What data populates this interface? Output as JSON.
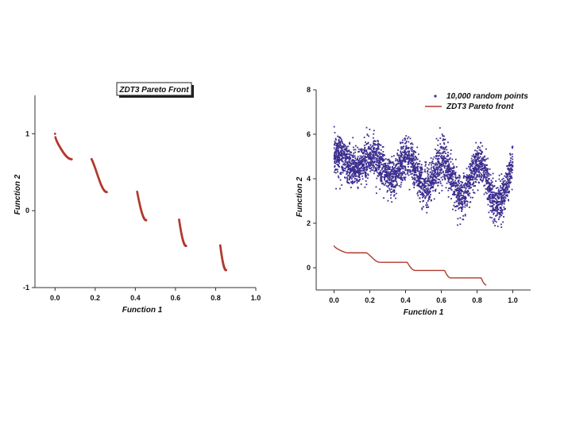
{
  "chart_data": [
    {
      "type": "scatter",
      "title": "ZDT3 Pareto Front",
      "xlabel": "Function 1",
      "ylabel": "Function 2",
      "xlim": [
        -0.1,
        1.0
      ],
      "ylim": [
        -1.0,
        1.5
      ],
      "xticks": [
        "0.0",
        "0.2",
        "0.4",
        "0.6",
        "0.8",
        "1.0"
      ],
      "yticks": [
        "-1",
        "0",
        "1"
      ],
      "point_color": "#b03a2e",
      "segments": [
        {
          "xmin": 0.0,
          "xmax": 0.083
        },
        {
          "xmin": 0.182,
          "xmax": 0.258
        },
        {
          "xmin": 0.409,
          "xmax": 0.454
        },
        {
          "xmin": 0.618,
          "xmax": 0.653
        },
        {
          "xmin": 0.823,
          "xmax": 0.852
        }
      ]
    },
    {
      "type": "scatter",
      "xlabel": "Function 1",
      "ylabel": "Function 2",
      "xlim": [
        -0.1,
        1.1
      ],
      "ylim": [
        -1.0,
        8.0
      ],
      "xticks": [
        "0.0",
        "0.2",
        "0.4",
        "0.6",
        "0.8",
        "1.0"
      ],
      "yticks": [
        "0",
        "2",
        "4",
        "6",
        "8"
      ],
      "series": [
        {
          "name": "10,000 random points",
          "kind": "points",
          "count": 10000,
          "color": "#3b2d8f"
        },
        {
          "name": "ZDT3 Pareto front",
          "kind": "line",
          "color": "#b03a2e"
        }
      ]
    }
  ]
}
